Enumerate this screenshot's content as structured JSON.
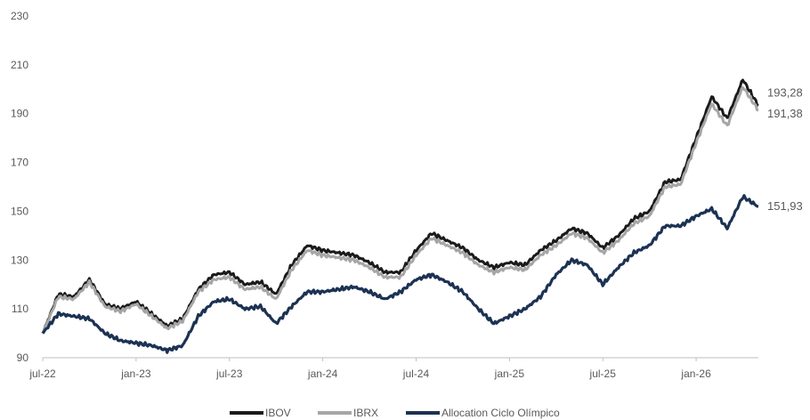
{
  "chart_data": {
    "type": "line",
    "title": "",
    "xlabel": "",
    "ylabel": "",
    "ylim": [
      90,
      230
    ],
    "y_ticks": [
      90,
      110,
      130,
      150,
      170,
      190,
      210,
      230
    ],
    "x_ticks": [
      "jul-22",
      "jan-23",
      "jul-23",
      "jan-24",
      "jul-24",
      "jan-25",
      "jul-25",
      "jan-26"
    ],
    "x_range": [
      "2022-07",
      "2026-05"
    ],
    "grid": false,
    "legend_position": "bottom",
    "series": [
      {
        "name": "IBOV",
        "color": "#1a1a1a",
        "end_label": "193,28",
        "points": [
          [
            "2022-07-01",
            100
          ],
          [
            "2022-08-01",
            116
          ],
          [
            "2022-09-01",
            115
          ],
          [
            "2022-10-01",
            122
          ],
          [
            "2022-11-01",
            112
          ],
          [
            "2022-12-01",
            110
          ],
          [
            "2023-01-01",
            113
          ],
          [
            "2023-02-01",
            108
          ],
          [
            "2023-03-01",
            103
          ],
          [
            "2023-04-01",
            106
          ],
          [
            "2023-05-01",
            118
          ],
          [
            "2023-06-01",
            124
          ],
          [
            "2023-07-01",
            125
          ],
          [
            "2023-08-01",
            120
          ],
          [
            "2023-09-01",
            121
          ],
          [
            "2023-10-01",
            116
          ],
          [
            "2023-11-01",
            128
          ],
          [
            "2023-12-01",
            136
          ],
          [
            "2024-01-01",
            134
          ],
          [
            "2024-02-01",
            133
          ],
          [
            "2024-03-01",
            132
          ],
          [
            "2024-04-01",
            129
          ],
          [
            "2024-05-01",
            125
          ],
          [
            "2024-06-01",
            125
          ],
          [
            "2024-07-01",
            134
          ],
          [
            "2024-08-01",
            141
          ],
          [
            "2024-09-01",
            138
          ],
          [
            "2024-10-01",
            135
          ],
          [
            "2024-11-01",
            130
          ],
          [
            "2024-12-01",
            127
          ],
          [
            "2025-01-01",
            129
          ],
          [
            "2025-02-01",
            128
          ],
          [
            "2025-03-01",
            134
          ],
          [
            "2025-04-01",
            138
          ],
          [
            "2025-05-01",
            143
          ],
          [
            "2025-06-01",
            141
          ],
          [
            "2025-07-01",
            135
          ],
          [
            "2025-08-01",
            140
          ],
          [
            "2025-09-01",
            147
          ],
          [
            "2025-10-01",
            150
          ],
          [
            "2025-11-01",
            162
          ],
          [
            "2025-12-01",
            163
          ],
          [
            "2026-01-01",
            180
          ],
          [
            "2026-02-01",
            197
          ],
          [
            "2026-03-01",
            188
          ],
          [
            "2026-04-01",
            204
          ],
          [
            "2026-05-01",
            193.28
          ]
        ]
      },
      {
        "name": "IBRX",
        "color": "#a6a6a6",
        "end_label": "191,38",
        "points": [
          [
            "2022-07-01",
            100
          ],
          [
            "2022-08-01",
            115
          ],
          [
            "2022-09-01",
            114
          ],
          [
            "2022-10-01",
            121
          ],
          [
            "2022-11-01",
            111
          ],
          [
            "2022-12-01",
            109
          ],
          [
            "2023-01-01",
            112
          ],
          [
            "2023-02-01",
            107
          ],
          [
            "2023-03-01",
            102
          ],
          [
            "2023-04-01",
            105
          ],
          [
            "2023-05-01",
            117
          ],
          [
            "2023-06-01",
            122
          ],
          [
            "2023-07-01",
            123
          ],
          [
            "2023-08-01",
            118
          ],
          [
            "2023-09-01",
            119
          ],
          [
            "2023-10-01",
            114
          ],
          [
            "2023-11-01",
            126
          ],
          [
            "2023-12-01",
            134
          ],
          [
            "2024-01-01",
            132
          ],
          [
            "2024-02-01",
            131
          ],
          [
            "2024-03-01",
            130
          ],
          [
            "2024-04-01",
            127
          ],
          [
            "2024-05-01",
            123
          ],
          [
            "2024-06-01",
            123
          ],
          [
            "2024-07-01",
            132
          ],
          [
            "2024-08-01",
            139
          ],
          [
            "2024-09-01",
            136
          ],
          [
            "2024-10-01",
            133
          ],
          [
            "2024-11-01",
            128
          ],
          [
            "2024-12-01",
            125
          ],
          [
            "2025-01-01",
            127
          ],
          [
            "2025-02-01",
            126
          ],
          [
            "2025-03-01",
            132
          ],
          [
            "2025-04-01",
            136
          ],
          [
            "2025-05-01",
            141
          ],
          [
            "2025-06-01",
            139
          ],
          [
            "2025-07-01",
            133
          ],
          [
            "2025-08-01",
            138
          ],
          [
            "2025-09-01",
            145
          ],
          [
            "2025-10-01",
            148
          ],
          [
            "2025-11-01",
            160
          ],
          [
            "2025-12-01",
            161
          ],
          [
            "2026-01-01",
            178
          ],
          [
            "2026-02-01",
            194
          ],
          [
            "2026-03-01",
            185
          ],
          [
            "2026-04-01",
            201
          ],
          [
            "2026-05-01",
            191.38
          ]
        ]
      },
      {
        "name": "Allocation Ciclo Olímpico",
        "color": "#1c3253",
        "end_label": "151,93",
        "points": [
          [
            "2022-07-01",
            100
          ],
          [
            "2022-08-01",
            108
          ],
          [
            "2022-09-01",
            107
          ],
          [
            "2022-10-01",
            106
          ],
          [
            "2022-11-01",
            100
          ],
          [
            "2022-12-01",
            97
          ],
          [
            "2023-01-01",
            96
          ],
          [
            "2023-02-01",
            95
          ],
          [
            "2023-03-01",
            93
          ],
          [
            "2023-04-01",
            95
          ],
          [
            "2023-05-01",
            107
          ],
          [
            "2023-06-01",
            113
          ],
          [
            "2023-07-01",
            114
          ],
          [
            "2023-08-01",
            110
          ],
          [
            "2023-09-01",
            111
          ],
          [
            "2023-10-01",
            104
          ],
          [
            "2023-11-01",
            111
          ],
          [
            "2023-12-01",
            117
          ],
          [
            "2024-01-01",
            117
          ],
          [
            "2024-02-01",
            118
          ],
          [
            "2024-03-01",
            119
          ],
          [
            "2024-04-01",
            117
          ],
          [
            "2024-05-01",
            114
          ],
          [
            "2024-06-01",
            117
          ],
          [
            "2024-07-01",
            122
          ],
          [
            "2024-08-01",
            124
          ],
          [
            "2024-09-01",
            121
          ],
          [
            "2024-10-01",
            117
          ],
          [
            "2024-11-01",
            110
          ],
          [
            "2024-12-01",
            104
          ],
          [
            "2025-01-01",
            107
          ],
          [
            "2025-02-01",
            110
          ],
          [
            "2025-03-01",
            115
          ],
          [
            "2025-04-01",
            124
          ],
          [
            "2025-05-01",
            130
          ],
          [
            "2025-06-01",
            128
          ],
          [
            "2025-07-01",
            120
          ],
          [
            "2025-08-01",
            127
          ],
          [
            "2025-09-01",
            133
          ],
          [
            "2025-10-01",
            136
          ],
          [
            "2025-11-01",
            144
          ],
          [
            "2025-12-01",
            144
          ],
          [
            "2026-01-01",
            148
          ],
          [
            "2026-02-01",
            151
          ],
          [
            "2026-03-01",
            143
          ],
          [
            "2026-04-01",
            156
          ],
          [
            "2026-05-01",
            151.93
          ]
        ]
      }
    ]
  }
}
